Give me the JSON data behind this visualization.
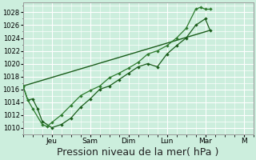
{
  "bg_color": "#cceedd",
  "grid_color": "#ffffff",
  "line_color_dark": "#1a5c1a",
  "line_color_mid": "#2d7a2d",
  "ylim": [
    1009,
    1029.5
  ],
  "ylabel_ticks": [
    1010,
    1012,
    1014,
    1016,
    1018,
    1020,
    1022,
    1024,
    1026,
    1028
  ],
  "xlabel": "Pression niveau de la mer( hPa )",
  "xlabel_fontsize": 9,
  "day_tick_positions": [
    3.0,
    7.0,
    11.0,
    15.0,
    19.0,
    23.0
  ],
  "day_labels": [
    "Jeu",
    "Sam",
    "Dim",
    "Lun",
    "Mar",
    "M"
  ],
  "xlim": [
    0,
    24
  ],
  "line1_x": [
    0.0,
    0.5,
    1.0,
    1.5,
    2.0,
    3.0,
    4.0,
    5.0,
    6.0,
    7.0,
    8.0,
    9.0,
    10.0,
    11.0,
    12.0,
    13.0,
    14.0,
    15.0,
    16.0,
    17.0,
    18.0,
    19.0,
    19.5
  ],
  "line1_y": [
    1016.5,
    1014.3,
    1014.5,
    1013.0,
    1011.0,
    1010.0,
    1010.5,
    1011.5,
    1013.2,
    1014.5,
    1016.0,
    1016.5,
    1017.5,
    1018.5,
    1019.5,
    1020.0,
    1019.5,
    1021.5,
    1022.8,
    1024.0,
    1026.0,
    1027.0,
    1025.2
  ],
  "line2_x": [
    0.0,
    0.5,
    1.0,
    2.0,
    2.5,
    3.0,
    4.0,
    5.0,
    6.0,
    7.0,
    8.0,
    9.0,
    10.0,
    11.0,
    12.0,
    13.0,
    14.0,
    15.0,
    16.0,
    17.0,
    18.0,
    18.5,
    19.0,
    19.5
  ],
  "line2_y": [
    1016.5,
    1014.3,
    1013.0,
    1010.5,
    1010.2,
    1010.8,
    1012.0,
    1013.5,
    1015.0,
    1015.8,
    1016.5,
    1017.8,
    1018.5,
    1019.3,
    1020.2,
    1021.5,
    1022.0,
    1022.8,
    1024.0,
    1025.5,
    1028.5,
    1028.8,
    1028.5,
    1028.5
  ],
  "line3_x": [
    0.0,
    19.5
  ],
  "line3_y": [
    1016.5,
    1025.2
  ],
  "spine_color": "#999999"
}
